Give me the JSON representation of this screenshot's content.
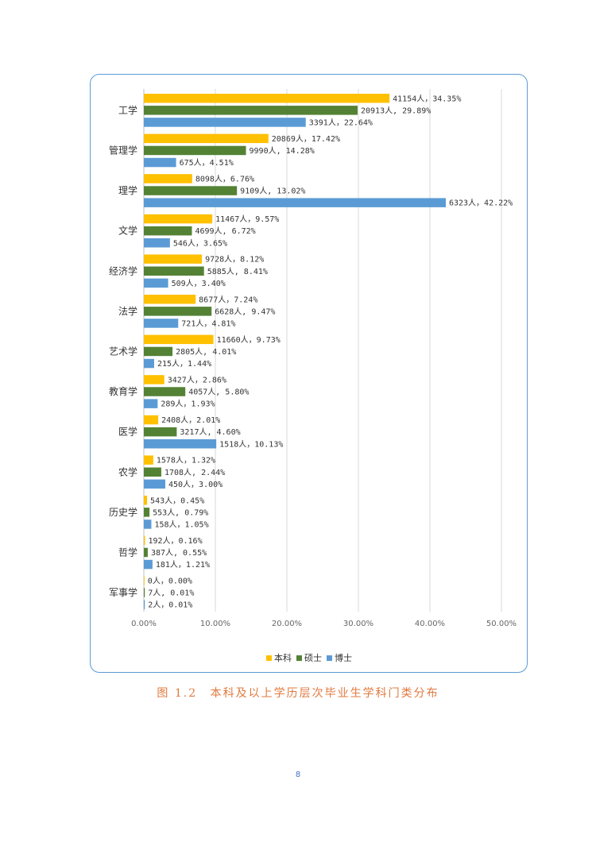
{
  "chart_data": {
    "type": "bar",
    "orientation": "horizontal",
    "categories": [
      "工学",
      "管理学",
      "理学",
      "文学",
      "经济学",
      "法学",
      "艺术学",
      "教育学",
      "医学",
      "农学",
      "历史学",
      "哲学",
      "军事学"
    ],
    "series": [
      {
        "name": "本科",
        "color": "#ffc000",
        "values": [
          34.35,
          17.42,
          6.76,
          9.57,
          8.12,
          7.24,
          9.73,
          2.86,
          2.01,
          1.32,
          0.45,
          0.16,
          0.0
        ],
        "labels": [
          "41154人，34.35%",
          "20869人，17.42%",
          "8098人，6.76%",
          "11467人，9.57%",
          "9728人，8.12%",
          "8677人，7.24%",
          "11660人，9.73%",
          "3427人，2.86%",
          "2408人，2.01%",
          "1578人，1.32%",
          "543人，0.45%",
          "192人，0.16%",
          "0人，0.00%"
        ]
      },
      {
        "name": "硕士",
        "color": "#548235",
        "values": [
          29.89,
          14.28,
          13.02,
          6.72,
          8.41,
          9.47,
          4.01,
          5.8,
          4.6,
          2.44,
          0.79,
          0.55,
          0.01
        ],
        "labels": [
          "20913人, 29.89%",
          "9990人, 14.28%",
          "9109人, 13.02%",
          "4699人, 6.72%",
          "5885人, 8.41%",
          "6628人, 9.47%",
          "2805人, 4.01%",
          "4057人, 5.80%",
          "3217人, 4.60%",
          "1708人, 2.44%",
          "553人, 0.79%",
          "387人, 0.55%",
          "7人, 0.01%"
        ]
      },
      {
        "name": "博士",
        "color": "#5b9bd5",
        "values": [
          22.64,
          4.51,
          42.22,
          3.65,
          3.4,
          4.81,
          1.44,
          1.93,
          10.13,
          3.0,
          1.05,
          1.21,
          0.01
        ],
        "labels": [
          "3391人，22.64%",
          "675人，4.51%",
          "6323人，42.22%",
          "546人，3.65%",
          "509人，3.40%",
          "721人，4.81%",
          "215人，1.44%",
          "289人，1.93%",
          "1518人，10.13%",
          "450人，3.00%",
          "158人，1.05%",
          "181人，1.21%",
          "2人，0.01%"
        ]
      }
    ],
    "xlim": [
      0,
      50
    ],
    "x_ticks": [
      "0.00%",
      "10.00%",
      "20.00%",
      "30.00%",
      "40.00%",
      "50.00%"
    ],
    "grid": true,
    "legend_position": "bottom"
  },
  "caption": {
    "figure_number": "图 1.2",
    "title": "本科及以上学历层次毕业生学科门类分布"
  },
  "page_number": "8"
}
